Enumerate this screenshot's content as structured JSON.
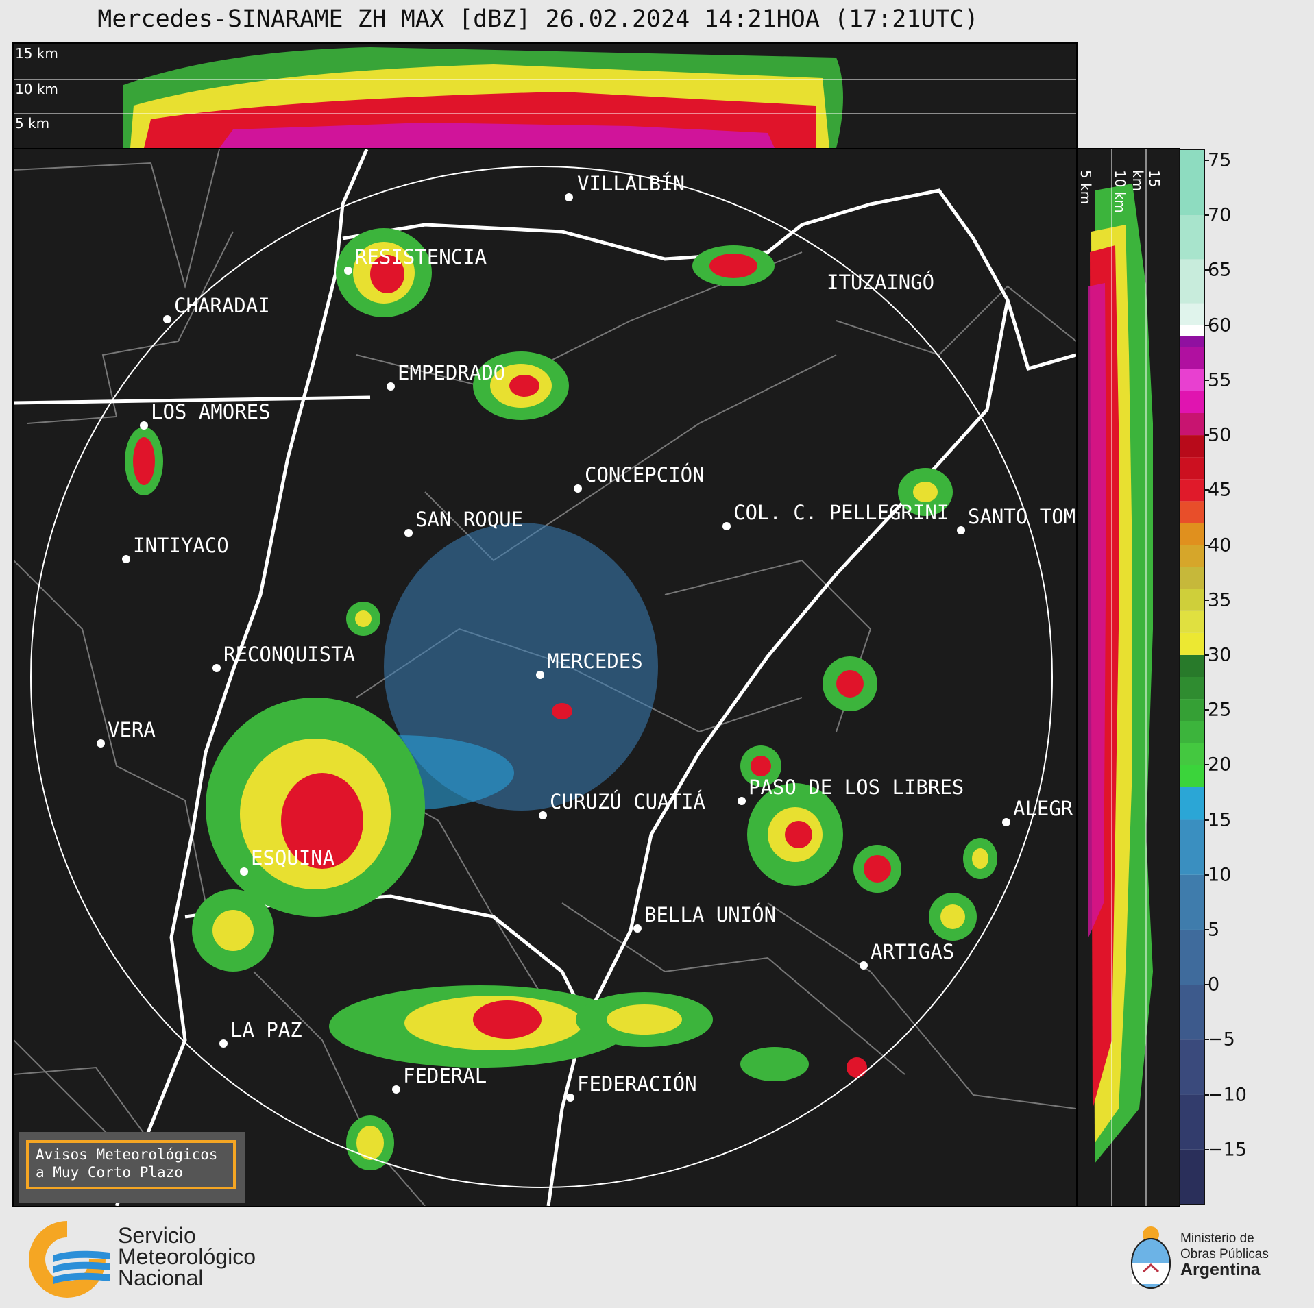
{
  "title": "Mercedes-SINARAME ZH MAX [dBZ] 26.02.2024 14:21HOA (17:21UTC)",
  "top_panel": {
    "height_labels": [
      "15 km",
      "10 km",
      "5 km"
    ]
  },
  "side_panel": {
    "height_labels": [
      "5 km",
      "10 km",
      "15 km"
    ]
  },
  "colorbar": {
    "ticks": [
      "75",
      "70",
      "65",
      "60",
      "55",
      "50",
      "45",
      "40",
      "35",
      "30",
      "25",
      "20",
      "15",
      "10",
      "5",
      "0",
      "−5",
      "−10",
      "−15"
    ],
    "min": -20,
    "max": 76
  },
  "cities": [
    {
      "name": "VILLALBÍN"
    },
    {
      "name": "RESISTENCIA"
    },
    {
      "name": "CHARADAI"
    },
    {
      "name": "ITUZAINGÓ"
    },
    {
      "name": "EMPEDRADO"
    },
    {
      "name": "LOS AMORES"
    },
    {
      "name": "CONCEPCIÓN"
    },
    {
      "name": "SAN ROQUE"
    },
    {
      "name": "COL. C. PELLEGRINI"
    },
    {
      "name": "SANTO TOM"
    },
    {
      "name": "INTIYACO"
    },
    {
      "name": "RECONQUISTA"
    },
    {
      "name": "MERCEDES"
    },
    {
      "name": "VERA"
    },
    {
      "name": "CURUZÚ CUATIÁ"
    },
    {
      "name": "PASO DE LOS LIBRES"
    },
    {
      "name": "ALEGR"
    },
    {
      "name": "ESQUINA"
    },
    {
      "name": "BELLA UNIÓN"
    },
    {
      "name": "ARTIGAS"
    },
    {
      "name": "LA PAZ"
    },
    {
      "name": "FEDERAL"
    },
    {
      "name": "FEDERACIÓN"
    }
  ],
  "notice": {
    "line1": "Avisos Meteorológicos",
    "line2": "a Muy Corto Plazo"
  },
  "footer": {
    "smn_line1": "Servicio",
    "smn_line2": "Meteorológico",
    "smn_line3": "Nacional",
    "ministry_line1": "Ministerio de",
    "ministry_line2": "Obras Públicas",
    "ministry_line3": "Argentina"
  }
}
